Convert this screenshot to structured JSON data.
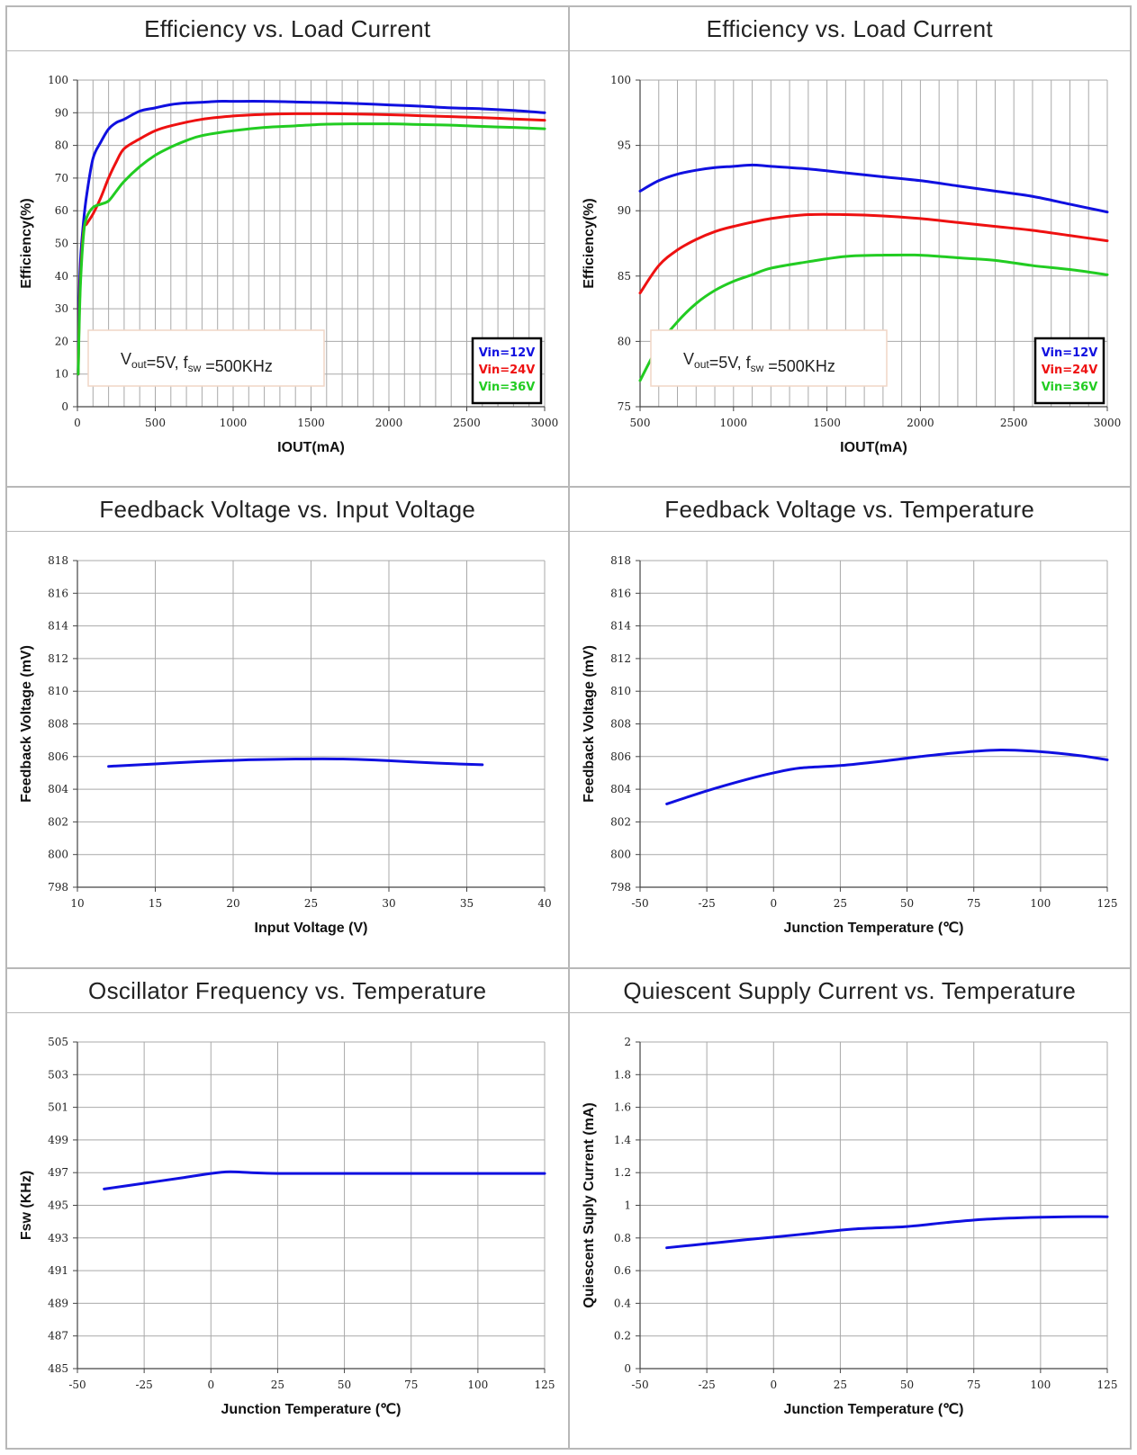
{
  "colors": {
    "blue": "#1010e0",
    "red": "#ee1111",
    "green": "#22cc22"
  },
  "chart_data": [
    {
      "type": "line",
      "title": "Efficiency vs. Load Current",
      "xlabel": "IOUT(mA)",
      "ylabel": "Efficiency(%)",
      "xlim": [
        0,
        3000
      ],
      "ylim": [
        0,
        100
      ],
      "xticks": [
        0,
        500,
        1000,
        1500,
        2000,
        2500,
        3000
      ],
      "yticks": [
        0,
        10,
        20,
        30,
        40,
        50,
        60,
        70,
        80,
        90,
        100
      ],
      "xgrid": 100,
      "annotation": {
        "v": "V",
        "vsub": "out",
        "mid": "=5V, f",
        "fsub": "sw",
        "end": " =500KHz"
      },
      "legend_position": "bottom-right",
      "series": [
        {
          "name": "Vin=12V",
          "color": "#1010e0",
          "x": [
            5,
            10,
            20,
            40,
            60,
            100,
            150,
            200,
            250,
            300,
            400,
            500,
            600,
            700,
            800,
            900,
            1000,
            1200,
            1400,
            1600,
            1800,
            2000,
            2200,
            2400,
            2600,
            2800,
            3000
          ],
          "y": [
            10,
            30,
            45,
            57,
            65,
            76,
            81,
            85,
            87,
            88,
            90.5,
            91.5,
            92.5,
            93,
            93.2,
            93.5,
            93.5,
            93.5,
            93.3,
            93.1,
            92.8,
            92.4,
            92,
            91.5,
            91.2,
            90.7,
            90
          ]
        },
        {
          "name": "Vin=24V",
          "color": "#ee1111",
          "x": [
            5,
            10,
            20,
            40,
            60,
            100,
            150,
            200,
            250,
            300,
            400,
            500,
            600,
            800,
            1000,
            1200,
            1400,
            1600,
            1800,
            2000,
            2200,
            2400,
            2600,
            2800,
            3000
          ],
          "y": [
            10,
            25,
            40,
            54,
            56,
            59,
            64,
            70,
            75,
            79,
            82,
            84.5,
            86,
            88,
            89,
            89.5,
            89.7,
            89.7,
            89.6,
            89.4,
            89.1,
            88.8,
            88.5,
            88.1,
            87.7
          ]
        },
        {
          "name": "Vin=36V",
          "color": "#22cc22",
          "x": [
            5,
            10,
            20,
            40,
            60,
            100,
            150,
            200,
            250,
            300,
            400,
            500,
            600,
            700,
            800,
            1000,
            1200,
            1400,
            1600,
            1800,
            2000,
            2200,
            2400,
            2600,
            2800,
            3000
          ],
          "y": [
            10,
            22,
            38,
            53,
            58,
            61,
            62,
            63,
            66,
            69,
            73.5,
            77,
            79.5,
            81.5,
            83,
            84.5,
            85.5,
            86,
            86.5,
            86.6,
            86.6,
            86.4,
            86.2,
            85.8,
            85.5,
            85.1
          ]
        }
      ]
    },
    {
      "type": "line",
      "title": "Efficiency vs. Load Current",
      "xlabel": "IOUT(mA)",
      "ylabel": "Efficiency(%)",
      "xlim": [
        500,
        3000
      ],
      "ylim": [
        75,
        100
      ],
      "xticks": [
        500,
        1000,
        1500,
        2000,
        2500,
        3000
      ],
      "yticks": [
        75,
        80,
        85,
        90,
        95,
        100
      ],
      "xgrid": 100,
      "annotation": {
        "v": "V",
        "vsub": "out",
        "mid": "=5V, f",
        "fsub": "sw",
        "end": " =500KHz"
      },
      "legend_position": "bottom-right",
      "series": [
        {
          "name": "Vin=12V",
          "color": "#1010e0",
          "x": [
            500,
            600,
            700,
            800,
            900,
            1000,
            1100,
            1200,
            1400,
            1600,
            1800,
            2000,
            2200,
            2400,
            2600,
            2800,
            3000
          ],
          "y": [
            91.5,
            92.3,
            92.8,
            93.1,
            93.3,
            93.4,
            93.5,
            93.4,
            93.2,
            92.9,
            92.6,
            92.3,
            91.9,
            91.5,
            91.1,
            90.5,
            89.9
          ]
        },
        {
          "name": "Vin=24V",
          "color": "#ee1111",
          "x": [
            500,
            600,
            700,
            800,
            900,
            1000,
            1200,
            1400,
            1600,
            1800,
            2000,
            2200,
            2400,
            2600,
            2800,
            3000
          ],
          "y": [
            83.7,
            85.8,
            87,
            87.8,
            88.4,
            88.8,
            89.4,
            89.7,
            89.7,
            89.6,
            89.4,
            89.1,
            88.8,
            88.5,
            88.1,
            87.7
          ]
        },
        {
          "name": "Vin=36V",
          "color": "#22cc22",
          "x": [
            500,
            600,
            700,
            800,
            900,
            1000,
            1100,
            1200,
            1400,
            1600,
            1800,
            2000,
            2200,
            2400,
            2600,
            2800,
            3000
          ],
          "y": [
            77,
            79.7,
            81.5,
            82.9,
            83.9,
            84.6,
            85.1,
            85.6,
            86.1,
            86.5,
            86.6,
            86.6,
            86.4,
            86.2,
            85.8,
            85.5,
            85.1
          ]
        }
      ]
    },
    {
      "type": "line",
      "title": "Feedback Voltage vs. Input Voltage",
      "xlabel": "Input Voltage (V)",
      "ylabel": "Feedback Voltage (mV)",
      "xlim": [
        10,
        40
      ],
      "ylim": [
        798,
        818
      ],
      "xticks": [
        10,
        15,
        20,
        25,
        30,
        35,
        40
      ],
      "yticks": [
        798,
        800,
        802,
        804,
        806,
        808,
        810,
        812,
        814,
        816,
        818
      ],
      "xgrid": 5,
      "series": [
        {
          "color": "#1010e0",
          "x": [
            12,
            15,
            18,
            21,
            24,
            27,
            30,
            33,
            36
          ],
          "y": [
            805.4,
            805.55,
            805.7,
            805.8,
            805.85,
            805.85,
            805.75,
            805.6,
            805.5
          ]
        }
      ]
    },
    {
      "type": "line",
      "title": "Feedback Voltage vs. Temperature",
      "xlabel": "Junction Temperature (℃)",
      "ylabel": "Feedback Voltage (mV)",
      "xlim": [
        -50,
        125
      ],
      "ylim": [
        798,
        818
      ],
      "xticks": [
        -50,
        -25,
        0,
        25,
        50,
        75,
        100,
        125
      ],
      "yticks": [
        798,
        800,
        802,
        804,
        806,
        808,
        810,
        812,
        814,
        816,
        818
      ],
      "xgrid": 25,
      "series": [
        {
          "color": "#1010e0",
          "x": [
            -40,
            -25,
            -10,
            0,
            10,
            25,
            40,
            55,
            70,
            85,
            100,
            115,
            125
          ],
          "y": [
            803.1,
            803.9,
            804.6,
            805.0,
            805.3,
            805.45,
            805.7,
            806.0,
            806.25,
            806.4,
            806.3,
            806.05,
            805.8
          ]
        }
      ]
    },
    {
      "type": "line",
      "title": "Oscillator Frequency vs. Temperature",
      "xlabel": "Junction Temperature (℃)",
      "ylabel": "Fsw (KHz)",
      "xlim": [
        -50,
        125
      ],
      "ylim": [
        485,
        505
      ],
      "xticks": [
        -50,
        -25,
        0,
        25,
        50,
        75,
        100,
        125
      ],
      "yticks": [
        485,
        487,
        489,
        491,
        493,
        495,
        497,
        499,
        501,
        503,
        505
      ],
      "xgrid": 25,
      "series": [
        {
          "color": "#1010e0",
          "x": [
            -40,
            -25,
            -10,
            0,
            7,
            15,
            25,
            50,
            75,
            100,
            125
          ],
          "y": [
            496.0,
            496.35,
            496.7,
            496.95,
            497.05,
            497.0,
            496.95,
            496.95,
            496.95,
            496.95,
            496.95
          ]
        }
      ]
    },
    {
      "type": "line",
      "title": "Quiescent Supply Current vs. Temperature",
      "xlabel": "Junction Temperature (℃)",
      "ylabel": "Quiescent Suply Current (mA)",
      "xlim": [
        -50,
        125
      ],
      "ylim": [
        0,
        2
      ],
      "xticks": [
        -50,
        -25,
        0,
        25,
        50,
        75,
        100,
        125
      ],
      "yticks": [
        0,
        0.2,
        0.4,
        0.6,
        0.8,
        1,
        1.2,
        1.4,
        1.6,
        1.8,
        2
      ],
      "yticklabels": [
        "0",
        "0.2",
        "0.4",
        "0.6",
        "0.8",
        "1",
        "1.2",
        "1.4",
        "1.6",
        "1.8",
        "2"
      ],
      "xgrid": 25,
      "series": [
        {
          "color": "#1010e0",
          "x": [
            -40,
            -25,
            -10,
            0,
            15,
            30,
            50,
            65,
            80,
            95,
            110,
            125
          ],
          "y": [
            0.74,
            0.765,
            0.79,
            0.805,
            0.83,
            0.855,
            0.87,
            0.895,
            0.915,
            0.925,
            0.93,
            0.93
          ]
        }
      ]
    }
  ]
}
